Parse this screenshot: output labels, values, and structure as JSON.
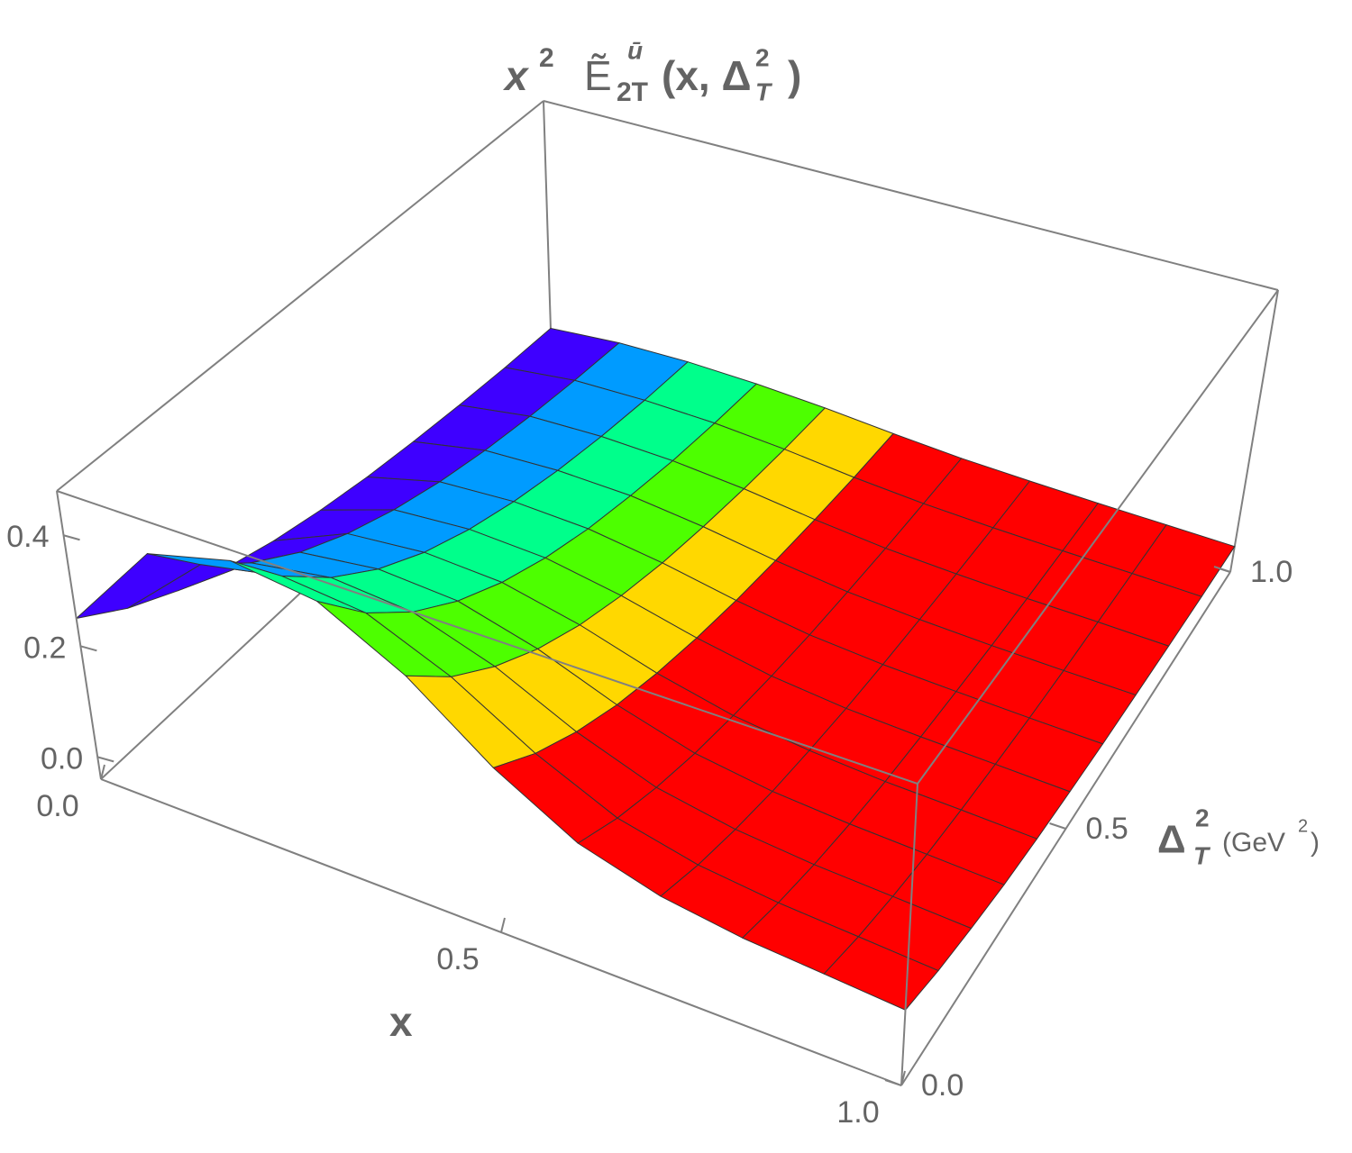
{
  "chart_data": {
    "type": "surface3d",
    "title": [
      "x",
      "2",
      "Ẽ",
      "ū",
      "2T",
      "(x, Δ",
      "2",
      "T",
      ")"
    ],
    "xlabel": "x",
    "ylabel": [
      "Δ",
      "2",
      "T",
      "(GeV",
      "2",
      ")"
    ],
    "x": [
      0,
      0.1,
      0.2,
      0.3,
      0.4,
      0.5,
      0.6,
      0.7,
      0.8,
      0.9,
      1
    ],
    "y": [
      0,
      0.1,
      0.2,
      0.3,
      0.4,
      0.5,
      0.6,
      0.7,
      0.8,
      0.9,
      1
    ],
    "z": [
      [
        0.25,
        0.42,
        0.46,
        0.44,
        0.36,
        0.25,
        0.17,
        0.13,
        0.11,
        0.1,
        0.09
      ],
      [
        0.195,
        0.327,
        0.358,
        0.343,
        0.28,
        0.195,
        0.132,
        0.101,
        0.086,
        0.078,
        0.07
      ],
      [
        0.152,
        0.255,
        0.279,
        0.267,
        0.219,
        0.152,
        0.103,
        0.079,
        0.067,
        0.061,
        0.055
      ],
      [
        0.118,
        0.198,
        0.217,
        0.208,
        0.17,
        0.118,
        0.08,
        0.061,
        0.052,
        0.047,
        0.042
      ],
      [
        0.092,
        0.155,
        0.169,
        0.162,
        0.132,
        0.092,
        0.063,
        0.048,
        0.04,
        0.037,
        0.033
      ],
      [
        0.072,
        0.121,
        0.132,
        0.126,
        0.103,
        0.072,
        0.049,
        0.037,
        0.032,
        0.029,
        0.026
      ],
      [
        0.056,
        0.094,
        0.103,
        0.098,
        0.08,
        0.056,
        0.038,
        0.029,
        0.025,
        0.022,
        0.02
      ],
      [
        0.044,
        0.073,
        0.08,
        0.077,
        0.063,
        0.044,
        0.03,
        0.023,
        0.019,
        0.017,
        0.016
      ],
      [
        0.034,
        0.057,
        0.062,
        0.059,
        0.049,
        0.034,
        0.023,
        0.018,
        0.015,
        0.014,
        0.012
      ],
      [
        0.026,
        0.044,
        0.048,
        0.046,
        0.038,
        0.026,
        0.018,
        0.014,
        0.012,
        0.011,
        0.009
      ],
      [
        0.021,
        0.034,
        0.038,
        0.036,
        0.03,
        0.021,
        0.014,
        0.011,
        0.009,
        0.008,
        0.007
      ]
    ],
    "xlim": [
      0,
      1
    ],
    "ylim": [
      0,
      1
    ],
    "zlim": [
      -0.04,
      0.48
    ],
    "xticks": [
      {
        "value": 0,
        "label": "0.0"
      },
      {
        "value": 0.5,
        "label": "0.5"
      },
      {
        "value": 1,
        "label": "1.0"
      }
    ],
    "yticks": [
      {
        "value": 0,
        "label": "0.0"
      },
      {
        "value": 0.5,
        "label": "0.5"
      },
      {
        "value": 1,
        "label": "1.0"
      }
    ],
    "zticks": [
      {
        "value": 0,
        "label": "0.0"
      },
      {
        "value": 0.2,
        "label": "0.2"
      },
      {
        "value": 0.4,
        "label": "0.4"
      }
    ],
    "mesh": true
  }
}
